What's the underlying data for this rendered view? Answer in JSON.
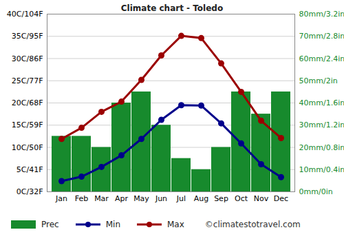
{
  "chart_data": {
    "type": "bar",
    "title": "Climate chart - Toledo",
    "categories": [
      "Jan",
      "Feb",
      "Mar",
      "Apr",
      "May",
      "Jun",
      "Jul",
      "Aug",
      "Sep",
      "Oct",
      "Nov",
      "Dec"
    ],
    "series": [
      {
        "name": "Prec",
        "type": "bar",
        "axis": "y2",
        "color": "#178a2d",
        "values": [
          25,
          25,
          20,
          40,
          45,
          30,
          15,
          10,
          20,
          45,
          35,
          45
        ]
      },
      {
        "name": "Min",
        "type": "line",
        "color": "#00008b",
        "marker": "circle",
        "values": [
          2.4,
          3.4,
          5.6,
          8.2,
          11.9,
          16.2,
          19.5,
          19.4,
          15.4,
          10.9,
          6.2,
          3.3
        ]
      },
      {
        "name": "Max",
        "type": "line",
        "color": "#9b0000",
        "marker": "circle",
        "values": [
          11.9,
          14.4,
          18.0,
          20.3,
          25.2,
          30.7,
          35.1,
          34.6,
          28.9,
          22.5,
          16.0,
          12.1
        ]
      }
    ],
    "ylim": [
      0,
      40
    ],
    "yticks": [
      {
        "value": 0,
        "label": "0C/32F"
      },
      {
        "value": 5,
        "label": "5C/41F"
      },
      {
        "value": 10,
        "label": "10C/50F"
      },
      {
        "value": 15,
        "label": "15C/59F"
      },
      {
        "value": 20,
        "label": "20C/68F"
      },
      {
        "value": 25,
        "label": "25C/77F"
      },
      {
        "value": 30,
        "label": "30C/86F"
      },
      {
        "value": 35,
        "label": "35C/95F"
      },
      {
        "value": 40,
        "label": "40C/104F"
      }
    ],
    "y2lim": [
      0,
      80
    ],
    "y2ticks": [
      {
        "value": 0,
        "label": "0mm/0in"
      },
      {
        "value": 10,
        "label": "10mm/0.4in"
      },
      {
        "value": 20,
        "label": "20mm/0.8in"
      },
      {
        "value": 30,
        "label": "30mm/1.2in"
      },
      {
        "value": 40,
        "label": "40mm/1.6in"
      },
      {
        "value": 50,
        "label": "50mm/2in"
      },
      {
        "value": 60,
        "label": "60mm/2.4in"
      },
      {
        "value": 70,
        "label": "70mm/2.8in"
      },
      {
        "value": 80,
        "label": "80mm/3.2in"
      }
    ],
    "grid": true,
    "legend": "bottom",
    "annotations": [
      "©climatestotravel.com"
    ]
  }
}
